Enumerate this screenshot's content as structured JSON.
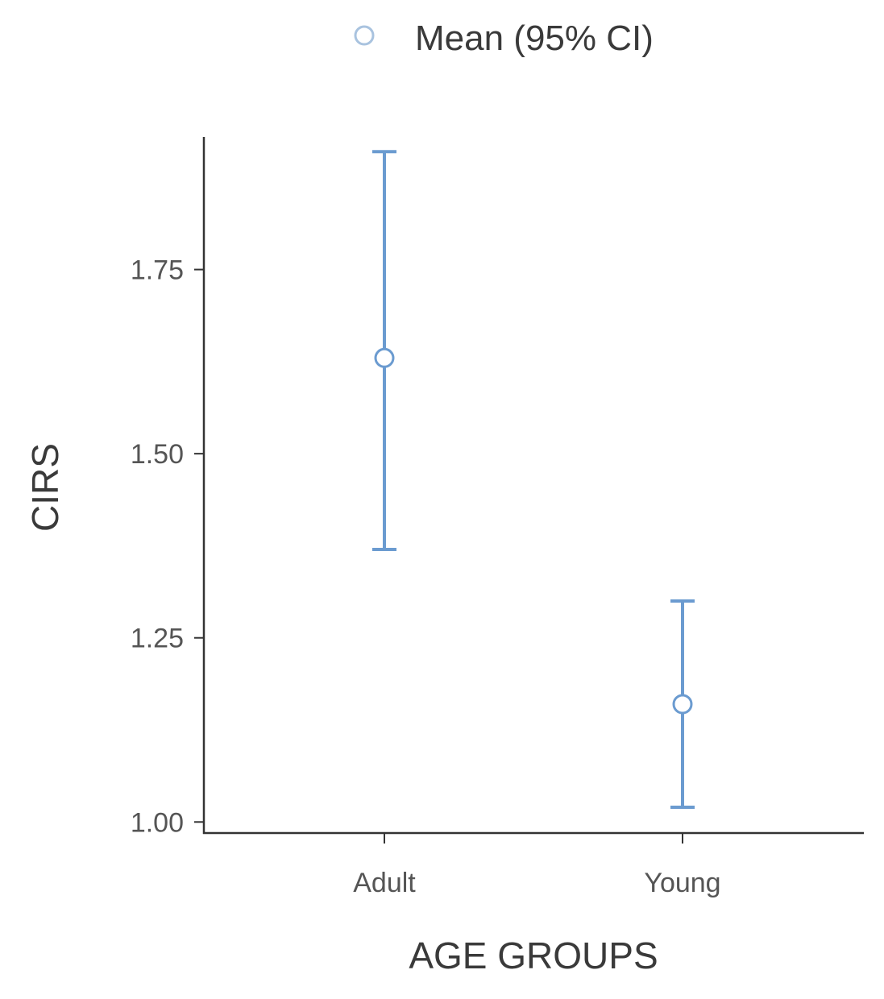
{
  "chart_data": {
    "type": "errorbar",
    "legend": {
      "label": "Mean (95% CI)",
      "placement": "top"
    },
    "xlabel": "AGE GROUPS",
    "ylabel": "CIRS",
    "categories": [
      "Adult",
      "Young"
    ],
    "points": [
      {
        "category": "Adult",
        "mean": 1.63,
        "ci_low": 1.37,
        "ci_high": 1.91
      },
      {
        "category": "Young",
        "mean": 1.16,
        "ci_low": 1.02,
        "ci_high": 1.3
      }
    ],
    "yticks": [
      1.0,
      1.25,
      1.5,
      1.75
    ],
    "ytick_labels": [
      "1.00",
      "1.25",
      "1.50",
      "1.75"
    ],
    "ylim": [
      0.985,
      1.93
    ],
    "grid": false,
    "colors": {
      "errorbar": "#6b9bd0",
      "marker_stroke": "#6b9bd0",
      "marker_fill": "#ffffff",
      "legend_marker": "#a9c3df",
      "axis": "#333333"
    }
  }
}
